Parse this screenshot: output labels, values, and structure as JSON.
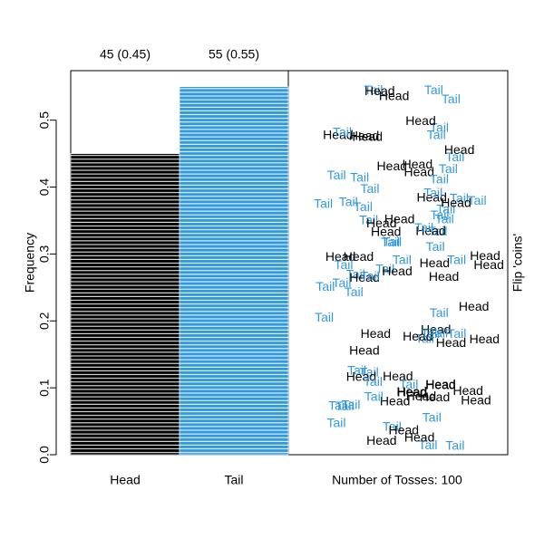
{
  "chart_data": {
    "type": "bar",
    "categories": [
      "Head",
      "Tail"
    ],
    "values": [
      0.45,
      0.55
    ],
    "value_labels": [
      "45 (0.45)",
      "55 (0.55)"
    ],
    "colors": [
      "#000000",
      "#3399dd"
    ],
    "ylim": [
      0,
      0.574
    ],
    "yticks": [
      {
        "value": 0,
        "label": "0.0"
      },
      0.1,
      0.2,
      0.3,
      0.4,
      0.5
    ],
    "ylabel": "Frequency",
    "xlabel": "Number of Tosses: 100",
    "side_label": "Flip 'coins'",
    "tosses": [
      "Head",
      "Tail",
      "Head",
      "Tail",
      "Head",
      "Tail",
      "Tail",
      "Head",
      "Tail",
      "Head",
      "Head",
      "Tail",
      "Tail",
      "Head",
      "Tail",
      "Head",
      "Tail",
      "Tail",
      "Head",
      "Tail",
      "Head",
      "Tail",
      "Head",
      "Tail",
      "Head",
      "Tail",
      "Tail",
      "Head",
      "Tail",
      "Head",
      "Head",
      "Tail",
      "Tail",
      "Head",
      "Tail",
      "Head",
      "Tail",
      "Tail",
      "Head",
      "Tail",
      "Head",
      "Tail",
      "Head",
      "Tail",
      "Head",
      "Tail",
      "Tail",
      "Head",
      "Tail",
      "Head",
      "Head",
      "Tail",
      "Tail",
      "Head",
      "Tail",
      "Head",
      "Tail",
      "Tail",
      "Head",
      "Tail",
      "Head",
      "Tail",
      "Head",
      "Tail",
      "Head",
      "Tail",
      "Tail",
      "Head",
      "Tail",
      "Head",
      "Head",
      "Tail",
      "Tail",
      "Head",
      "Tail",
      "Head",
      "Tail",
      "Tail",
      "Head",
      "Tail",
      "Head",
      "Tail",
      "Head",
      "Tail",
      "Head",
      "Tail",
      "Tail",
      "Head",
      "Tail",
      "Head",
      "Head",
      "Tail",
      "Tail",
      "Head",
      "Tail",
      "Head",
      "Tail",
      "Tail",
      "Head",
      "Tail"
    ]
  }
}
